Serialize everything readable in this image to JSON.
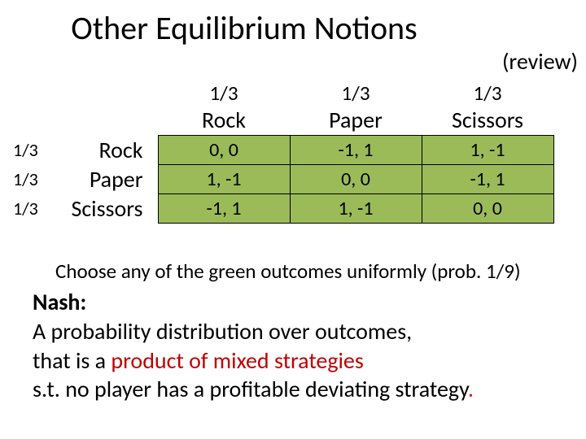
{
  "title": "Other Equilibrium Notions",
  "subtitle": "(review)",
  "matrix": {
    "col_probs": [
      "1/3",
      "1/3",
      "1/3"
    ],
    "col_headers": [
      "Rock",
      "Paper",
      "Scissors"
    ],
    "row_probs": [
      "1/3",
      "1/3",
      "1/3"
    ],
    "row_headers": [
      "Rock",
      "Paper",
      "Scissors"
    ],
    "cells": [
      [
        "0, 0",
        "-1, 1",
        "1, -1"
      ],
      [
        "1, -1",
        "0, 0",
        "-1, 1"
      ],
      [
        "-1, 1",
        "1, -1",
        "0, 0"
      ]
    ],
    "cell_bg": "#9bbb59",
    "cell_border": "#000000"
  },
  "note": "Choose any of the green outcomes uniformly (prob. 1/9)",
  "body": {
    "nash_label": "Nash:",
    "line2a": " A probability distribution over outcomes,",
    "line3a": "that is a ",
    "line3b_red": "product of mixed strategies",
    "line4a": "s.t. no player has a profitable deviating strategy",
    "period": "."
  },
  "colors": {
    "red": "#c00000",
    "period_red": "#ff0000",
    "text": "#000000",
    "bg": "#ffffff"
  },
  "fonts": {
    "title_size_pt": 40,
    "subtitle_size_pt": 28,
    "body_size_pt": 28,
    "cell_size_pt": 24
  }
}
